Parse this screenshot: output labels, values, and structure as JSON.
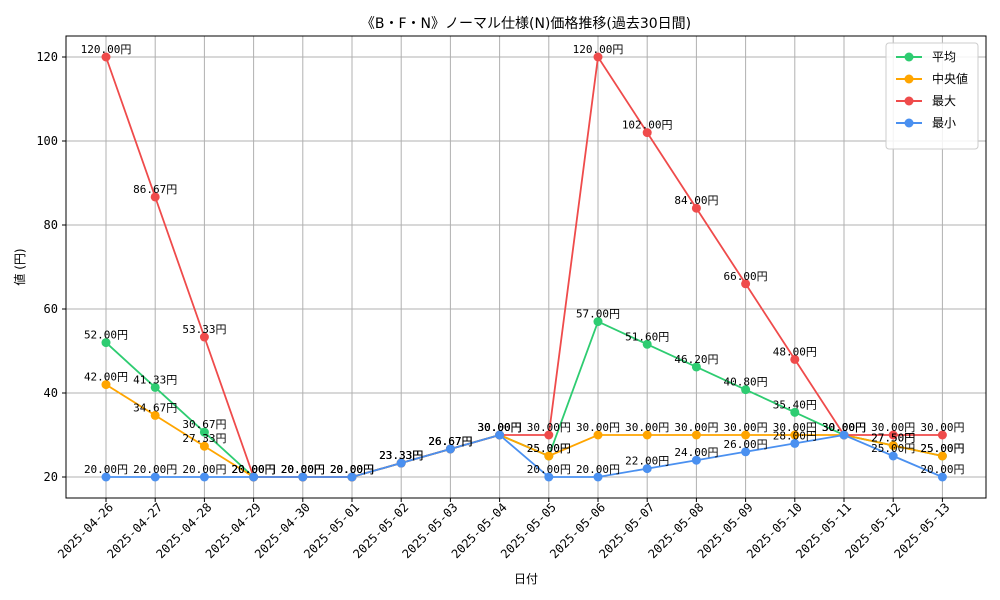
{
  "chart_data": {
    "type": "line",
    "title": "《B・F・N》ノーマル仕様(N)価格推移(過去30日間)",
    "xlabel": "日付",
    "ylabel": "値 (円)",
    "ylim": [
      15,
      125
    ],
    "yticks": [
      20,
      40,
      60,
      80,
      100,
      120
    ],
    "grid": true,
    "legend_position": "top-right",
    "unit_suffix": "円",
    "categories": [
      "2025-04-26",
      "2025-04-27",
      "2025-04-28",
      "2025-04-29",
      "2025-04-30",
      "2025-05-01",
      "2025-05-02",
      "2025-05-03",
      "2025-05-04",
      "2025-05-05",
      "2025-05-06",
      "2025-05-07",
      "2025-05-08",
      "2025-05-09",
      "2025-05-10",
      "2025-05-11",
      "2025-05-12",
      "2025-05-13"
    ],
    "series": [
      {
        "name": "平均",
        "color": "#2ecc71",
        "values": [
          52.0,
          41.33,
          30.67,
          20.0,
          20.0,
          20.0,
          23.33,
          26.67,
          30.0,
          25.0,
          57.0,
          51.6,
          46.2,
          40.8,
          35.4,
          30.0,
          27.5,
          25.0
        ]
      },
      {
        "name": "中央値",
        "color": "#ffa500",
        "values": [
          42.0,
          34.67,
          27.33,
          20.0,
          20.0,
          20.0,
          23.33,
          26.67,
          30.0,
          25.0,
          30.0,
          30.0,
          30.0,
          30.0,
          30.0,
          30.0,
          27.5,
          25.0
        ]
      },
      {
        "name": "最大",
        "color": "#ef4b4b",
        "values": [
          120.0,
          86.67,
          53.33,
          20.0,
          20.0,
          20.0,
          23.33,
          26.67,
          30.0,
          30.0,
          120.0,
          102.0,
          84.0,
          66.0,
          48.0,
          30.0,
          30.0,
          30.0
        ]
      },
      {
        "name": "最小",
        "color": "#4a90f0",
        "values": [
          20.0,
          20.0,
          20.0,
          20.0,
          20.0,
          20.0,
          23.33,
          26.67,
          30.0,
          20.0,
          20.0,
          22.0,
          24.0,
          26.0,
          28.0,
          30.0,
          25.0,
          20.0
        ]
      }
    ]
  }
}
